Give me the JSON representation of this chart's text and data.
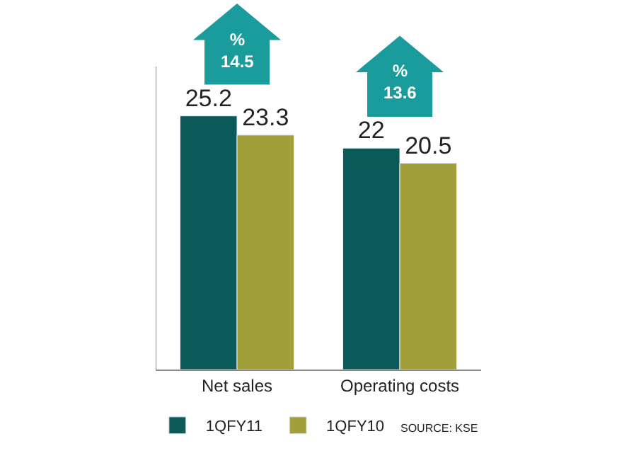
{
  "chart_data": {
    "type": "bar",
    "categories": [
      "Net sales",
      "Operating costs"
    ],
    "series": [
      {
        "name": "1QFY11",
        "color": "#0b5a5a",
        "values": [
          25.2,
          22
        ]
      },
      {
        "name": "1QFY10",
        "color": "#a29f3a",
        "values": [
          23.3,
          20.5
        ]
      }
    ],
    "data_labels": true,
    "legend": "bottom left",
    "annotations": [
      "%\n14.5",
      "%\n13.6",
      "SOURCE: KSE"
    ]
  }
}
